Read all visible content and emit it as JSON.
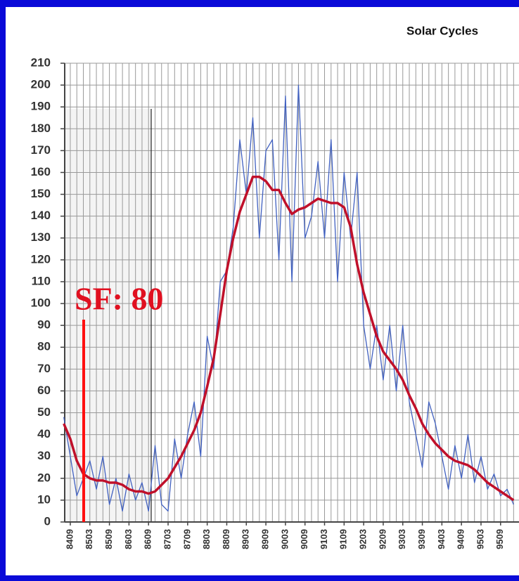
{
  "chart_data": {
    "type": "line",
    "title": "Solar Cycles",
    "annotation": "SF: 80",
    "categories": [
      null,
      "8409",
      null,
      null,
      "8503",
      null,
      null,
      "8509",
      null,
      null,
      "8603",
      null,
      null,
      "8609",
      null,
      null,
      "8703",
      null,
      null,
      "8709",
      null,
      null,
      "8803",
      null,
      null,
      "8809",
      null,
      null,
      "8903",
      null,
      null,
      "8909",
      null,
      null,
      "9003",
      null,
      null,
      "9009",
      null,
      null,
      "9103",
      null,
      null,
      "9109",
      null,
      null,
      "9203",
      null,
      null,
      "9209",
      null,
      null,
      "9303",
      null,
      null,
      "9309",
      null,
      null,
      "9403",
      null,
      null,
      "9409",
      null,
      null,
      "9503",
      null,
      null,
      "9509",
      null,
      null
    ],
    "series": [
      {
        "color": "#4060c0",
        "width": 1.3,
        "values": [
          48,
          30,
          12,
          20,
          28,
          15,
          30,
          8,
          20,
          5,
          22,
          10,
          18,
          5,
          35,
          8,
          5,
          38,
          20,
          40,
          55,
          30,
          85,
          70,
          110,
          115,
          135,
          175,
          150,
          185,
          130,
          170,
          175,
          120,
          195,
          110,
          200,
          130,
          140,
          165,
          130,
          175,
          110,
          160,
          130,
          160,
          90,
          70,
          90,
          65,
          90,
          60,
          90,
          55,
          40,
          25,
          55,
          45,
          30,
          15,
          35,
          20,
          40,
          18,
          30,
          15,
          22,
          12,
          15,
          8
        ]
      },
      {
        "color": "#c0102a",
        "width": 3.5,
        "values": [
          45,
          38,
          28,
          22,
          20,
          19,
          19,
          18,
          18,
          17,
          15,
          14,
          14,
          13,
          14,
          17,
          20,
          25,
          30,
          36,
          42,
          50,
          62,
          75,
          95,
          115,
          130,
          142,
          150,
          158,
          158,
          156,
          152,
          152,
          146,
          141,
          143,
          144,
          146,
          148,
          147,
          146,
          146,
          144,
          135,
          118,
          105,
          95,
          85,
          78,
          74,
          70,
          65,
          58,
          52,
          45,
          40,
          36,
          33,
          30,
          28,
          27,
          26,
          24,
          21,
          18,
          16,
          14,
          12,
          10
        ]
      }
    ],
    "ylim": [
      0,
      210
    ],
    "yticks": [
      0,
      10,
      20,
      30,
      40,
      50,
      60,
      70,
      80,
      90,
      100,
      110,
      120,
      130,
      140,
      150,
      160,
      170,
      180,
      190,
      200,
      210
    ],
    "grid": true
  }
}
